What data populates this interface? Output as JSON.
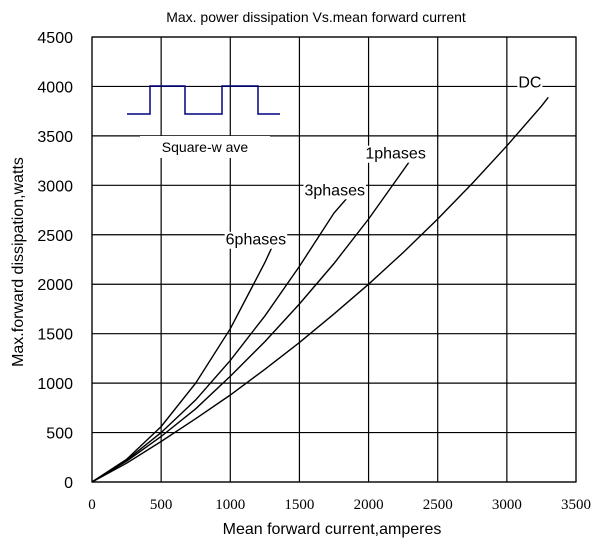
{
  "chart_data": {
    "type": "line",
    "title": "Max. power dissipation Vs.mean forward current",
    "xlabel": "Mean forward current,amperes",
    "ylabel": "Max.forward dissipation,watts",
    "xlim": [
      0,
      3500
    ],
    "ylim": [
      0,
      4500
    ],
    "xticks": [
      "0",
      "500",
      "1000",
      "1500",
      "2000",
      "2500",
      "3000",
      "3500"
    ],
    "yticks": [
      "0",
      "500",
      "1000",
      "1500",
      "2000",
      "2500",
      "3000",
      "3500",
      "4000",
      "4500"
    ],
    "grid": true,
    "inset_label": "Square-w ave",
    "series": [
      {
        "name": "6phases",
        "x": [
          0,
          250,
          500,
          750,
          1000,
          1250,
          1330
        ],
        "y": [
          0,
          230,
          560,
          1000,
          1550,
          2220,
          2460
        ]
      },
      {
        "name": "3phases",
        "x": [
          0,
          250,
          500,
          750,
          1000,
          1250,
          1500,
          1750,
          1900
        ],
        "y": [
          0,
          220,
          500,
          830,
          1230,
          1680,
          2180,
          2720,
          2960
        ]
      },
      {
        "name": "1phases",
        "x": [
          0,
          250,
          500,
          750,
          1000,
          1250,
          1500,
          1750,
          2000,
          2250,
          2340
        ],
        "y": [
          0,
          210,
          460,
          740,
          1070,
          1420,
          1800,
          2210,
          2660,
          3150,
          3330
        ]
      },
      {
        "name": "DC",
        "x": [
          0,
          250,
          500,
          750,
          1000,
          1250,
          1500,
          1750,
          2000,
          2250,
          2500,
          2750,
          3000,
          3250,
          3300
        ],
        "y": [
          0,
          190,
          410,
          640,
          880,
          1140,
          1410,
          1700,
          2000,
          2320,
          2660,
          3020,
          3400,
          3800,
          3890
        ]
      }
    ]
  }
}
